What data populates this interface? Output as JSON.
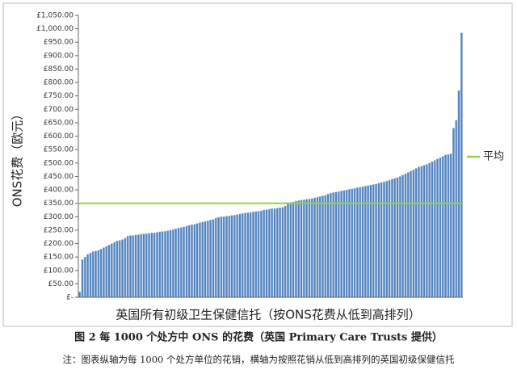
{
  "chart_data": {
    "type": "bar",
    "y_label": "ONS花费（欧元）",
    "x_label": "英国所有初级卫生保健信托（按ONS花费从低到高排列）",
    "caption": "图 2 每 1000 个处方中 ONS 的花费（英国 Primary Care Trusts 提供）",
    "note": "注：图表纵轴为每 1000 个处方单位的花销，横轴为按照花销从低到高排列的英国初级保健信托",
    "color": "#4f81bd",
    "average": 350,
    "average_label": "平均",
    "average_color": "#92d050",
    "values": [
      20,
      140,
      150,
      160,
      165,
      170,
      172,
      175,
      180,
      185,
      190,
      195,
      200,
      205,
      210,
      212,
      215,
      220,
      228,
      230,
      230,
      232,
      233,
      235,
      236,
      237,
      238,
      240,
      240,
      242,
      244,
      245,
      246,
      248,
      250,
      252,
      255,
      258,
      260,
      262,
      265,
      268,
      270,
      272,
      275,
      278,
      280,
      282,
      285,
      288,
      290,
      295,
      298,
      300,
      300,
      302,
      303,
      305,
      306,
      308,
      310,
      312,
      314,
      315,
      316,
      318,
      320,
      320,
      322,
      325,
      326,
      328,
      330,
      330,
      332,
      334,
      335,
      340,
      350,
      352,
      355,
      358,
      360,
      362,
      363,
      365,
      366,
      368,
      370,
      372,
      375,
      378,
      380,
      385,
      388,
      390,
      392,
      394,
      396,
      398,
      400,
      402,
      404,
      406,
      408,
      410,
      412,
      414,
      416,
      418,
      420,
      422,
      425,
      428,
      430,
      433,
      436,
      440,
      443,
      446,
      450,
      455,
      460,
      465,
      470,
      475,
      480,
      485,
      488,
      492,
      495,
      500,
      505,
      510,
      515,
      520,
      525,
      530,
      532,
      535,
      630,
      660,
      770,
      985
    ],
    "ylim": [
      0,
      1050
    ],
    "yticks": [
      {
        "value": 0,
        "label": "£-"
      },
      {
        "value": 50,
        "label": "£50.00"
      },
      {
        "value": 100,
        "label": "£100.00"
      },
      {
        "value": 150,
        "label": "£150.00"
      },
      {
        "value": 200,
        "label": "£200.00"
      },
      {
        "value": 250,
        "label": "£250.00"
      },
      {
        "value": 300,
        "label": "£300.00"
      },
      {
        "value": 350,
        "label": "£350.00"
      },
      {
        "value": 400,
        "label": "£400.00"
      },
      {
        "value": 450,
        "label": "£450.00"
      },
      {
        "value": 500,
        "label": "£500.00"
      },
      {
        "value": 550,
        "label": "£550.00"
      },
      {
        "value": 600,
        "label": "£600.00"
      },
      {
        "value": 650,
        "label": "£650.00"
      },
      {
        "value": 700,
        "label": "£700.00"
      },
      {
        "value": 750,
        "label": "£750.00"
      },
      {
        "value": 800,
        "label": "£800.00"
      },
      {
        "value": 850,
        "label": "£850.00"
      },
      {
        "value": 900,
        "label": "£900.00"
      },
      {
        "value": 950,
        "label": "£950.00"
      },
      {
        "value": 1000,
        "label": "£1,000.00"
      },
      {
        "value": 1050,
        "label": "£1,050.00"
      }
    ]
  }
}
